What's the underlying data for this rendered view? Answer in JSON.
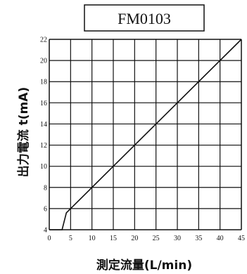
{
  "chart_data": {
    "type": "line",
    "title": "FM0103",
    "xlabel": "測定流量(L/min)",
    "ylabel": "出力電流 t(mA)",
    "xlim": [
      0,
      45
    ],
    "ylim": [
      4,
      22
    ],
    "x_ticks": [
      "0",
      "5",
      "10",
      "15",
      "20",
      "25",
      "30",
      "35",
      "40",
      "45"
    ],
    "y_ticks": [
      "4",
      "6",
      "8",
      "10",
      "12",
      "14",
      "16",
      "18",
      "20",
      "22"
    ],
    "grid": true,
    "series": [
      {
        "x": [
          0,
          3,
          4,
          45
        ],
        "y": [
          4,
          4,
          5.6,
          22
        ]
      }
    ]
  }
}
